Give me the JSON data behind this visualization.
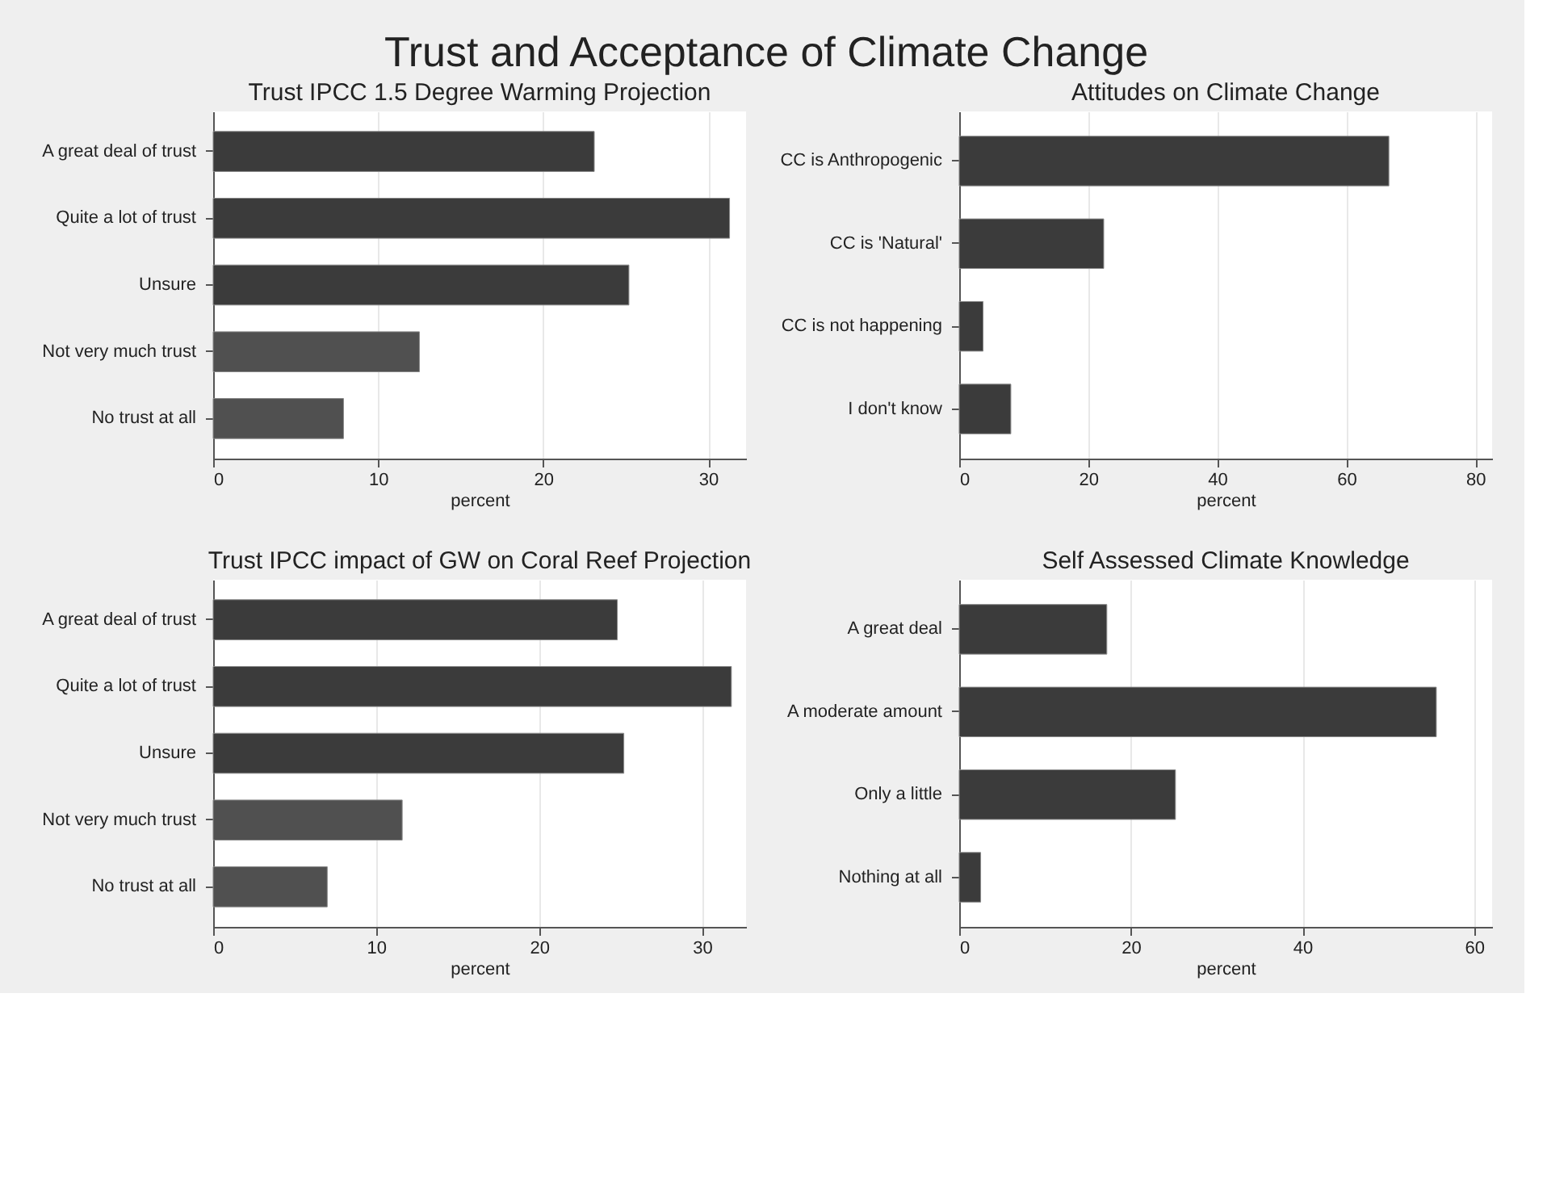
{
  "chart_data": [
    {
      "type": "other",
      "title": "Trust and Acceptance of Climate Change"
    },
    {
      "type": "bar",
      "orientation": "horizontal",
      "title": "Trust IPCC 1.5 Degree Warming Projection",
      "xlabel": "percent",
      "categories": [
        "A great deal of trust",
        "Quite a lot of trust",
        "Unsure",
        "Not very much trust",
        "No trust at all"
      ],
      "values": [
        23.1,
        31.3,
        25.2,
        12.5,
        7.9
      ],
      "colors": [
        "#3b3b3b",
        "#3b3b3b",
        "#3b3b3b",
        "#505050",
        "#505050"
      ],
      "xlim": [
        0,
        32.3
      ],
      "xticks": [
        0,
        10,
        20,
        30
      ],
      "grid": "x"
    },
    {
      "type": "bar",
      "orientation": "horizontal",
      "title": "Attitudes on Climate Change",
      "xlabel": "percent",
      "categories": [
        "CC is Anthropogenic",
        "CC is 'Natural'",
        "CC is not happening",
        "I don't know"
      ],
      "values": [
        66.6,
        22.4,
        3.7,
        8.0
      ],
      "colors": [
        "#3b3b3b",
        "#3b3b3b",
        "#3b3b3b",
        "#3b3b3b"
      ],
      "xlim": [
        0,
        82.6
      ],
      "xticks": [
        0,
        20,
        40,
        60,
        80
      ],
      "grid": "x"
    },
    {
      "type": "bar",
      "orientation": "horizontal",
      "title": "Trust IPCC impact of GW on Coral Reef Projection",
      "xlabel": "percent",
      "categories": [
        "A great deal of trust",
        "Quite a lot of trust",
        "Unsure",
        "Not very much trust",
        "No trust at all"
      ],
      "values": [
        24.8,
        31.8,
        25.2,
        11.6,
        7.0
      ],
      "colors": [
        "#3b3b3b",
        "#3b3b3b",
        "#3b3b3b",
        "#505050",
        "#505050"
      ],
      "xlim": [
        0,
        32.7
      ],
      "xticks": [
        0,
        10,
        20,
        30
      ],
      "grid": "x"
    },
    {
      "type": "bar",
      "orientation": "horizontal",
      "title": "Self Assessed Climate Knowledge",
      "xlabel": "percent",
      "categories": [
        "A great deal",
        "A moderate amount",
        "Only a little",
        "Nothing at all"
      ],
      "values": [
        17.2,
        55.6,
        25.2,
        2.5
      ],
      "colors": [
        "#3b3b3b",
        "#3b3b3b",
        "#3b3b3b",
        "#3b3b3b"
      ],
      "xlim": [
        0,
        62.1
      ],
      "xticks": [
        0,
        20,
        40,
        60
      ],
      "grid": "x"
    }
  ]
}
